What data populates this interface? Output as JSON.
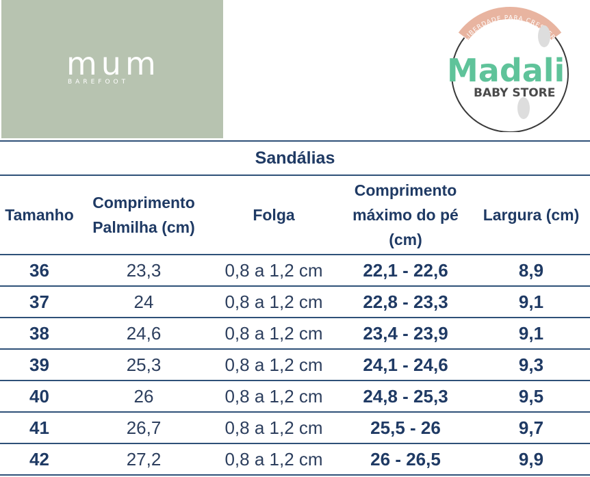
{
  "brand_left": {
    "name": "mum",
    "tagline": "BAREFOOT",
    "bg_color": "#b7c3b0"
  },
  "brand_right": {
    "name": "Madali",
    "subtitle": "BABY STORE",
    "arc_text": "LIBERDADE PARA CRESCER",
    "name_color": "#5fc39a",
    "arc_color": "#e8b4a0"
  },
  "table": {
    "title": "Sandálias",
    "headers": [
      "Tamanho",
      "Comprimento Palmilha (cm)",
      "Folga",
      "Comprimento máximo do pé (cm)",
      "Largura (cm)"
    ],
    "rows": [
      {
        "size": "36",
        "insole": "23,3",
        "gap": "0,8 a 1,2 cm",
        "foot": "22,1 - 22,6",
        "width": "8,9"
      },
      {
        "size": "37",
        "insole": "24",
        "gap": "0,8 a 1,2 cm",
        "foot": "22,8 - 23,3",
        "width": "9,1"
      },
      {
        "size": "38",
        "insole": "24,6",
        "gap": "0,8 a 1,2 cm",
        "foot": "23,4 - 23,9",
        "width": "9,1"
      },
      {
        "size": "39",
        "insole": "25,3",
        "gap": "0,8 a 1,2 cm",
        "foot": "24,1 - 24,6",
        "width": "9,3"
      },
      {
        "size": "40",
        "insole": "26",
        "gap": "0,8 a 1,2 cm",
        "foot": "24,8 - 25,3",
        "width": "9,5"
      },
      {
        "size": "41",
        "insole": "26,7",
        "gap": "0,8 a 1,2 cm",
        "foot": "25,5 - 26",
        "width": "9,7"
      },
      {
        "size": "42",
        "insole": "27,2",
        "gap": "0,8 a 1,2 cm",
        "foot": "26 - 26,5",
        "width": "9,9"
      }
    ],
    "line_color": "#2e5078",
    "text_color": "#1f3a64"
  }
}
